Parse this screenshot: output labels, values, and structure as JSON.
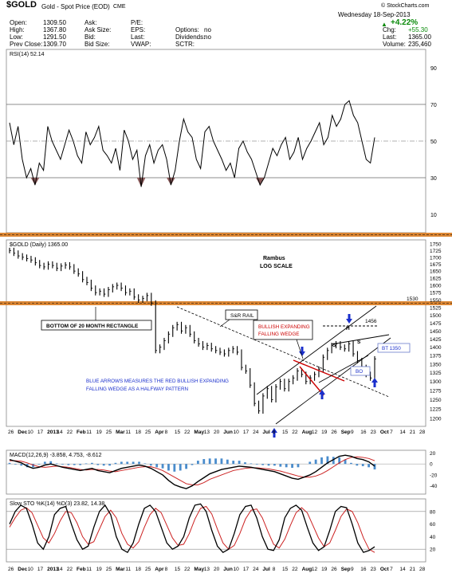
{
  "header": {
    "symbol": "$GOLD",
    "name": "Gold - Spot Price (EOD)",
    "exchange": "CME",
    "watermark": "© StockCharts.com",
    "date": "Wednesday 18-Sep-2013",
    "fields_col1": [
      {
        "label": "Open:",
        "value": "1309.50"
      },
      {
        "label": "High:",
        "value": "1367.80"
      },
      {
        "label": "Low:",
        "value": "1291.50"
      },
      {
        "label": "Prev Close:",
        "value": "1309.70"
      }
    ],
    "fields_col2": [
      {
        "label": "Ask:",
        "value": ""
      },
      {
        "label": "Ask Size:",
        "value": ""
      },
      {
        "label": "Bid:",
        "value": ""
      },
      {
        "label": "Bid Size:",
        "value": ""
      }
    ],
    "fields_col3": [
      {
        "label": "P/E:",
        "value": ""
      },
      {
        "label": "EPS:",
        "value": ""
      },
      {
        "label": "Last:",
        "value": ""
      },
      {
        "label": "VWAP:",
        "value": ""
      }
    ],
    "fields_col4": [
      {
        "label": "",
        "value": ""
      },
      {
        "label": "Options:",
        "value": "no"
      },
      {
        "label": "Dividends:",
        "value": "no"
      },
      {
        "label": "SCTR:",
        "value": ""
      }
    ],
    "change_pct": "+4.22%",
    "right_fields": [
      {
        "label": "Chg:",
        "value": "+55.30"
      },
      {
        "label": "Last:",
        "value": "1365.00"
      },
      {
        "label": "Volume:",
        "value": "235,460"
      }
    ]
  },
  "colors": {
    "up": "#0a8a0a",
    "annotation_red": "#cc0000",
    "annotation_blue": "#1a2fcc",
    "rectangle": "#d87a1e",
    "rsi_fill": "#8a5a5a",
    "macd_hist": "#4a8ccc",
    "signal": "#cc2222"
  },
  "chart_data": [
    {
      "type": "line",
      "panel": "rsi",
      "legend": "RSI(14) 52.14",
      "ylim": [
        0,
        100
      ],
      "yticks": [
        10,
        30,
        50,
        70,
        90
      ],
      "reference_lines": [
        30,
        70
      ],
      "series": [
        {
          "values": [
            60,
            48,
            58,
            40,
            30,
            35,
            26,
            38,
            34,
            58,
            50,
            45,
            40,
            48,
            56,
            50,
            42,
            38,
            55,
            48,
            52,
            58,
            45,
            42,
            38,
            46,
            34,
            56,
            50,
            40,
            45,
            25,
            42,
            48,
            38,
            45,
            48,
            40,
            26,
            34,
            50,
            62,
            55,
            52,
            40,
            35,
            55,
            58,
            50,
            45,
            40,
            34,
            38,
            30,
            46,
            50,
            44,
            40,
            33,
            26,
            30,
            38,
            46,
            42,
            48,
            52,
            40,
            44,
            52,
            40,
            46,
            50,
            55,
            60,
            48,
            52,
            64,
            58,
            62,
            70,
            72,
            64,
            60,
            50,
            40,
            38,
            52
          ]
        }
      ]
    },
    {
      "type": "bar",
      "panel": "price",
      "title": "$GOLD (Daily) 1365.00",
      "scale": "log",
      "ylim": [
        1180,
        1765
      ],
      "yticks": [
        1200,
        1225,
        1250,
        1275,
        1300,
        1325,
        1350,
        1375,
        1400,
        1425,
        1450,
        1475,
        1500,
        1525,
        1550,
        1575,
        1600,
        1625,
        1650,
        1675,
        1700,
        1725,
        1750
      ],
      "series": [
        {
          "name": "OHLC",
          "values": [
            1725,
            1715,
            1705,
            1700,
            1695,
            1690,
            1680,
            1670,
            1665,
            1675,
            1670,
            1660,
            1668,
            1672,
            1665,
            1650,
            1640,
            1620,
            1610,
            1590,
            1575,
            1580,
            1570,
            1585,
            1595,
            1600,
            1590,
            1575,
            1580,
            1560,
            1550,
            1555,
            1565,
            1540,
            1390,
            1400,
            1420,
            1440,
            1460,
            1470,
            1450,
            1460,
            1440,
            1420,
            1410,
            1400,
            1405,
            1395,
            1390,
            1385,
            1380,
            1390,
            1395,
            1385,
            1340,
            1330,
            1290,
            1240,
            1220,
            1260,
            1280,
            1250,
            1285,
            1300,
            1280,
            1300,
            1310,
            1330,
            1320,
            1300,
            1310,
            1320,
            1335,
            1370,
            1390,
            1405,
            1410,
            1400,
            1395,
            1410,
            1380,
            1360,
            1340,
            1320,
            1310,
            1365
          ]
        }
      ],
      "annotations": [
        "Rambus",
        "LOG SCALE",
        "BOTTOM OF 20 MONTH RECTANGLE",
        "S&R RAIL",
        "BULLISH EXPANDING",
        "FALLING WEDGE",
        "BLUE ARROWS MEASURES THE RED BULLISH EXPANDING",
        "FALLING WEDGE AS A HALFWAY PATTERN",
        "BT 1350",
        "BO",
        "S",
        "H",
        "S",
        "1530",
        "1456"
      ]
    },
    {
      "type": "line",
      "panel": "macd",
      "legend": "MACD(12,26,9) -3.858, 4.753, -8.612",
      "ylim": [
        -55,
        25
      ],
      "yticks": [
        -40,
        -20,
        0,
        20
      ],
      "series": [
        {
          "name": "MACD",
          "values": [
            8,
            5,
            2,
            -4,
            -8,
            -6,
            -2,
            0,
            -3,
            -6,
            -8,
            -10,
            -12,
            -10,
            -8,
            -12,
            -14,
            -16,
            -12,
            -8,
            -6,
            -4,
            -2,
            -4,
            -8,
            -14,
            -20,
            -30,
            -38,
            -42,
            -45,
            -40,
            -32,
            -25,
            -18,
            -14,
            -10,
            -8,
            -6,
            -4,
            -5,
            -6,
            -8,
            -10,
            -12,
            -14,
            -18,
            -22,
            -26,
            -28,
            -24,
            -20,
            -14,
            -6,
            2,
            8,
            14,
            16,
            14,
            10,
            8,
            4,
            -4
          ]
        },
        {
          "name": "Signal",
          "values": [
            6,
            6,
            5,
            2,
            -2,
            -5,
            -6,
            -5,
            -4,
            -5,
            -6,
            -8,
            -10,
            -11,
            -10,
            -10,
            -11,
            -13,
            -14,
            -12,
            -10,
            -8,
            -6,
            -5,
            -5,
            -8,
            -12,
            -18,
            -24,
            -30,
            -36,
            -38,
            -38,
            -34,
            -28,
            -24,
            -20,
            -16,
            -12,
            -10,
            -8,
            -7,
            -7,
            -8,
            -9,
            -11,
            -13,
            -16,
            -19,
            -22,
            -24,
            -24,
            -22,
            -18,
            -12,
            -5,
            2,
            8,
            12,
            13,
            12,
            10,
            6
          ]
        }
      ]
    },
    {
      "type": "line",
      "panel": "stochastic",
      "legend": "Slow STO %K(14) %D(3) 23.82, 14.38",
      "ylim": [
        0,
        100
      ],
      "yticks": [
        20,
        40,
        60,
        80
      ],
      "series": [
        {
          "name": "%K",
          "values": [
            60,
            80,
            90,
            85,
            60,
            30,
            20,
            40,
            75,
            85,
            88,
            60,
            35,
            20,
            25,
            55,
            80,
            90,
            75,
            40,
            20,
            15,
            30,
            60,
            85,
            90,
            80,
            55,
            30,
            20,
            25,
            40,
            70,
            90,
            92,
            80,
            50,
            25,
            15,
            20,
            45,
            75,
            88,
            90,
            70,
            40,
            20,
            18,
            35,
            70,
            85,
            90,
            82,
            55,
            30,
            18,
            24,
            50,
            80,
            88,
            86,
            60,
            30,
            15,
            18,
            24
          ]
        },
        {
          "name": "%D",
          "values": [
            55,
            70,
            82,
            86,
            78,
            58,
            38,
            30,
            45,
            65,
            80,
            78,
            62,
            40,
            28,
            32,
            52,
            72,
            82,
            70,
            45,
            28,
            22,
            32,
            55,
            75,
            85,
            78,
            58,
            38,
            26,
            28,
            45,
            68,
            85,
            88,
            76,
            52,
            30,
            20,
            26,
            45,
            68,
            82,
            84,
            70,
            48,
            28,
            22,
            36,
            58,
            78,
            86,
            78,
            58,
            38,
            24,
            30,
            50,
            72,
            84,
            80,
            62,
            38,
            20,
            15
          ]
        }
      ]
    }
  ],
  "xaxis_labels": [
    "26",
    "Dec",
    "10",
    "17",
    "2013",
    "14",
    "22",
    "Feb",
    "11",
    "19",
    "25",
    "Mar",
    "11",
    "18",
    "25",
    "Apr",
    "8",
    "15",
    "22",
    "May",
    "13",
    "20",
    "Jun",
    "10",
    "17",
    "24",
    "Jul",
    "8",
    "15",
    "22",
    "Aug",
    "12",
    "19",
    "26",
    "Sep",
    "9",
    "16",
    "23",
    "Oct",
    "7",
    "14",
    "21",
    "28"
  ]
}
